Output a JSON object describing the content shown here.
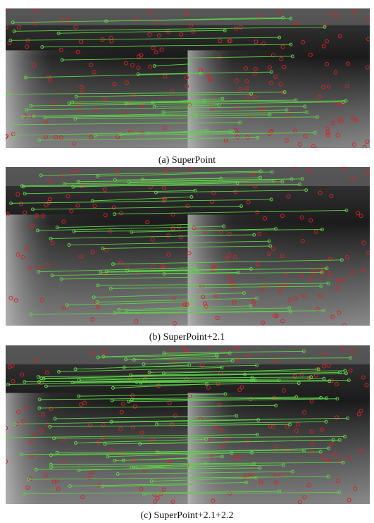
{
  "figure": {
    "panels": [
      {
        "caption": "(a) SuperPoint"
      },
      {
        "caption": "(b) SuperPoint+2.1"
      },
      {
        "caption": "(c) SuperPoint+2.1+2.2"
      }
    ]
  }
}
